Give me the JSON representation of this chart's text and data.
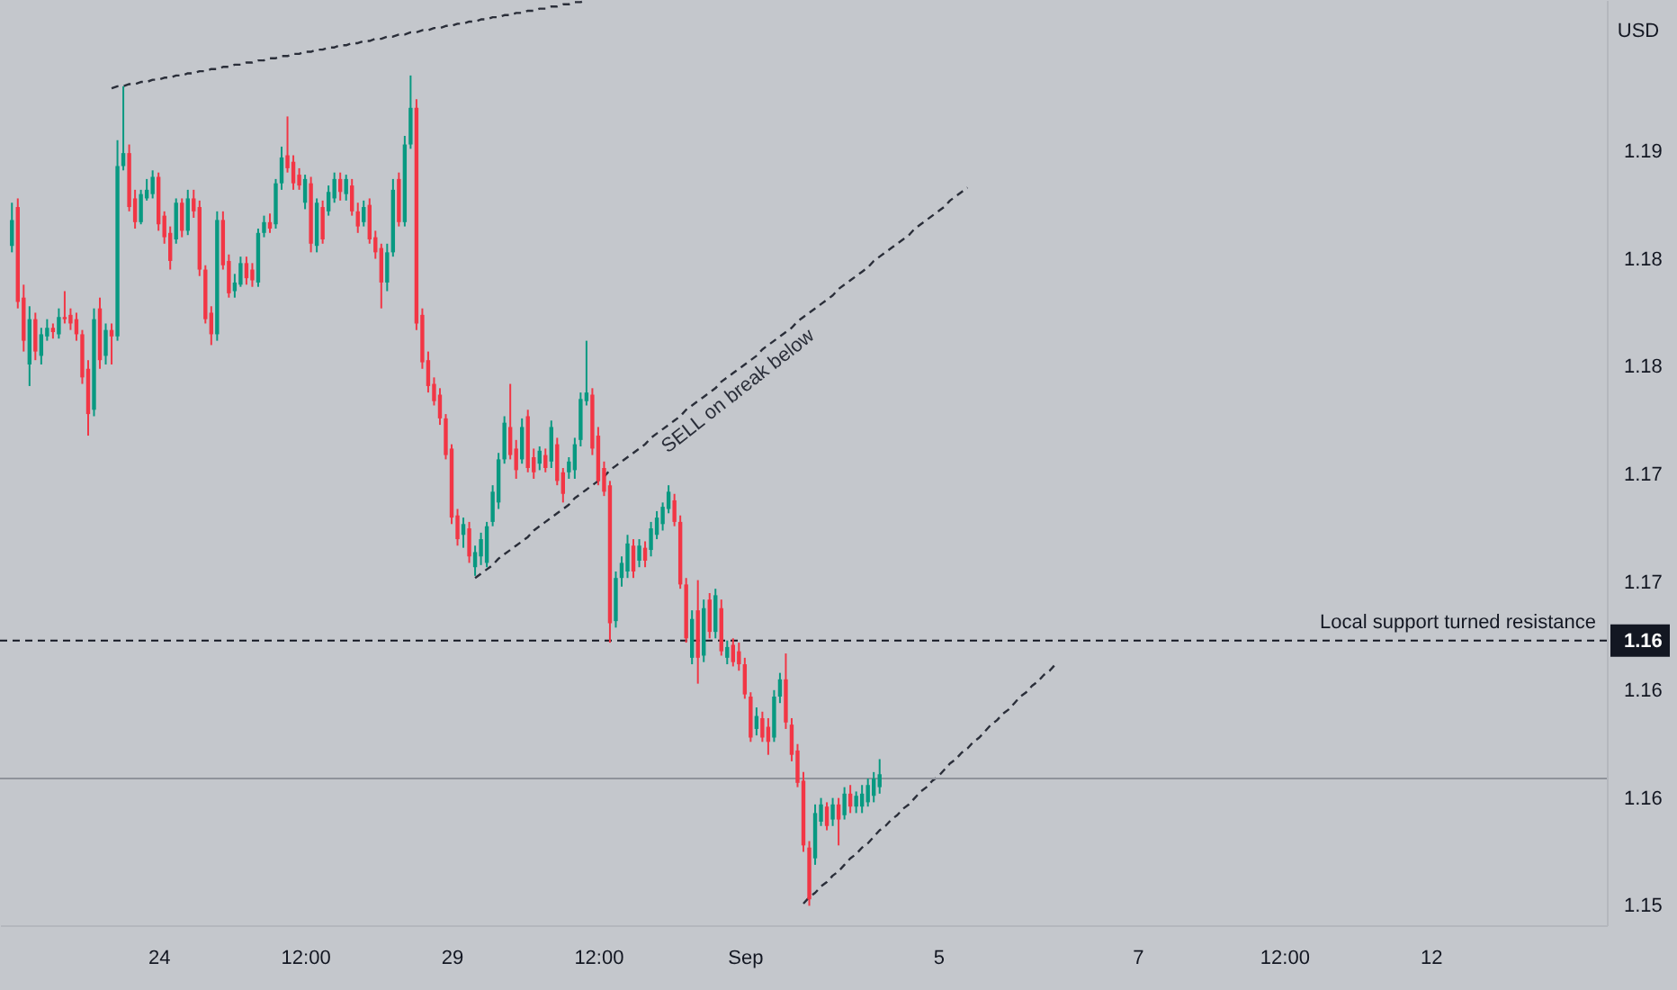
{
  "chart_data": {
    "type": "candlestick",
    "ylabel": "USD",
    "ylim": [
      1.1491,
      1.192
    ],
    "yticks": [
      {
        "value": 1.185,
        "label": "1.19"
      },
      1.18,
      {
        "value": 1.175,
        "label": "1.18"
      },
      1.17,
      {
        "value": 1.165,
        "label": "1.17"
      },
      {
        "value": 1.1623,
        "label": "1.16"
      },
      1.16,
      {
        "value": 1.155,
        "label": "1.16"
      },
      1.15
    ],
    "categories": [
      null,
      null,
      null,
      null,
      null,
      null,
      null,
      null,
      null,
      null,
      null,
      null,
      null,
      null,
      null,
      null,
      null,
      null,
      null,
      null,
      null,
      null,
      null,
      null,
      null,
      "24",
      null,
      null,
      null,
      null,
      null,
      null,
      null,
      null,
      null,
      null,
      null,
      null,
      null,
      null,
      null,
      null,
      null,
      null,
      null,
      null,
      null,
      null,
      null,
      null,
      "12:00",
      null,
      null,
      null,
      null,
      null,
      null,
      null,
      null,
      null,
      null,
      null,
      null,
      null,
      null,
      null,
      null,
      null,
      null,
      null,
      null,
      null,
      null,
      null,
      null,
      "29",
      null,
      null,
      null,
      null,
      null,
      null,
      null,
      null,
      null,
      null,
      null,
      null,
      null,
      null,
      null,
      null,
      null,
      null,
      null,
      null,
      null,
      null,
      null,
      null,
      "12:00",
      null,
      null,
      null,
      null,
      null,
      null,
      null,
      null,
      null,
      null,
      null,
      null,
      null,
      null,
      null,
      null,
      null,
      null,
      null,
      null,
      null,
      null,
      null,
      null,
      "Sep",
      null,
      null,
      null,
      null,
      null,
      null,
      null,
      null,
      null,
      null,
      null,
      null,
      null,
      null,
      null,
      null,
      null,
      null,
      null,
      null,
      null,
      null,
      null,
      null,
      null,
      null,
      null,
      null,
      null,
      null,
      null,
      null,
      "5",
      null,
      null,
      null,
      null,
      null,
      null,
      null,
      null,
      null,
      null,
      null,
      null,
      null,
      null,
      null,
      null,
      null,
      null,
      null,
      null,
      null,
      null,
      null,
      null,
      null,
      null,
      null,
      null,
      null,
      null,
      null,
      null,
      null,
      "7",
      null,
      null,
      null,
      null,
      null,
      null,
      null,
      null,
      null,
      null,
      null,
      null,
      null,
      null,
      null,
      null,
      null,
      null,
      null,
      null,
      null,
      null,
      null,
      null,
      "12:00",
      null,
      null,
      null,
      null,
      null,
      null,
      null,
      null,
      null,
      null,
      null,
      null,
      null,
      null,
      null,
      null,
      null,
      null,
      null,
      null,
      null,
      null,
      null,
      null,
      "12",
      null,
      null,
      null,
      null,
      null,
      null,
      null,
      null,
      null,
      null,
      null,
      null,
      null,
      null,
      null,
      null,
      null,
      null,
      null,
      null,
      null,
      null,
      null,
      null,
      null,
      null,
      null,
      null
    ],
    "ohlc": [
      [
        1.1806,
        1.1826,
        1.1803,
        1.1818
      ],
      [
        1.1824,
        1.1828,
        1.1777,
        1.178
      ],
      [
        1.1782,
        1.1788,
        1.1757,
        1.1762
      ],
      [
        1.1751,
        1.1778,
        1.1741,
        1.1772
      ],
      [
        1.1772,
        1.1775,
        1.1753,
        1.1757
      ],
      [
        1.1755,
        1.1768,
        1.1751,
        1.1765
      ],
      [
        1.1764,
        1.1772,
        1.1762,
        1.1768
      ],
      [
        1.1768,
        1.177,
        1.1763,
        1.1766
      ],
      [
        1.1765,
        1.1777,
        1.1763,
        1.1773
      ],
      [
        1.1773,
        1.1785,
        1.177,
        1.1772
      ],
      [
        1.1774,
        1.1777,
        1.1767,
        1.177
      ],
      [
        1.1772,
        1.1775,
        1.1762,
        1.1765
      ],
      [
        1.1765,
        1.1767,
        1.1742,
        1.1745
      ],
      [
        1.1749,
        1.1753,
        1.1718,
        1.1728
      ],
      [
        1.173,
        1.1777,
        1.1727,
        1.1772
      ],
      [
        1.1777,
        1.1782,
        1.1749,
        1.1753
      ],
      [
        1.1755,
        1.177,
        1.1751,
        1.1767
      ],
      [
        1.1767,
        1.177,
        1.1751,
        1.1764
      ],
      [
        1.1764,
        1.1855,
        1.1762,
        1.1843
      ],
      [
        1.1843,
        1.188,
        1.1841,
        1.1849
      ],
      [
        1.1849,
        1.1853,
        1.1822,
        1.1824
      ],
      [
        1.1828,
        1.1832,
        1.1814,
        1.1817
      ],
      [
        1.1817,
        1.1832,
        1.1816,
        1.183
      ],
      [
        1.1828,
        1.1837,
        1.1827,
        1.1832
      ],
      [
        1.183,
        1.1841,
        1.1828,
        1.1838
      ],
      [
        1.1838,
        1.184,
        1.1813,
        1.1816
      ],
      [
        1.182,
        1.1822,
        1.1807,
        1.181
      ],
      [
        1.1812,
        1.1815,
        1.1795,
        1.1799
      ],
      [
        1.1809,
        1.1828,
        1.1807,
        1.1826
      ],
      [
        1.1826,
        1.1828,
        1.181,
        1.1813
      ],
      [
        1.1813,
        1.1832,
        1.1811,
        1.1828
      ],
      [
        1.1828,
        1.1832,
        1.1819,
        1.1822
      ],
      [
        1.1824,
        1.1827,
        1.1792,
        1.1795
      ],
      [
        1.1795,
        1.1797,
        1.177,
        1.1772
      ],
      [
        1.1775,
        1.1778,
        1.176,
        1.1765
      ],
      [
        1.1765,
        1.1822,
        1.1762,
        1.1818
      ],
      [
        1.1818,
        1.1822,
        1.1795,
        1.1797
      ],
      [
        1.1799,
        1.1802,
        1.1782,
        1.1784
      ],
      [
        1.1785,
        1.1793,
        1.1782,
        1.1789
      ],
      [
        1.1788,
        1.1801,
        1.1787,
        1.1798
      ],
      [
        1.1798,
        1.1801,
        1.1788,
        1.1791
      ],
      [
        1.1795,
        1.1798,
        1.1787,
        1.179
      ],
      [
        1.1789,
        1.1814,
        1.1787,
        1.1812
      ],
      [
        1.1812,
        1.182,
        1.181,
        1.1817
      ],
      [
        1.1817,
        1.1821,
        1.1812,
        1.1814
      ],
      [
        1.1816,
        1.1837,
        1.1814,
        1.1835
      ],
      [
        1.1835,
        1.1852,
        1.1832,
        1.1847
      ],
      [
        1.1848,
        1.1866,
        1.184,
        1.1842
      ],
      [
        1.1845,
        1.1848,
        1.1832,
        1.1835
      ],
      [
        1.1839,
        1.1842,
        1.1832,
        1.1834
      ],
      [
        1.1826,
        1.1839,
        1.1823,
        1.1837
      ],
      [
        1.1835,
        1.1838,
        1.1803,
        1.1807
      ],
      [
        1.1806,
        1.1828,
        1.1803,
        1.1826
      ],
      [
        1.1824,
        1.1827,
        1.1807,
        1.1809
      ],
      [
        1.1822,
        1.1834,
        1.182,
        1.1831
      ],
      [
        1.1828,
        1.184,
        1.1826,
        1.1837
      ],
      [
        1.1837,
        1.184,
        1.1827,
        1.1831
      ],
      [
        1.183,
        1.1839,
        1.1827,
        1.1837
      ],
      [
        1.1834,
        1.1837,
        1.182,
        1.1822
      ],
      [
        1.1822,
        1.1826,
        1.1812,
        1.1815
      ],
      [
        1.1817,
        1.1827,
        1.1815,
        1.1824
      ],
      [
        1.1825,
        1.1828,
        1.1807,
        1.1809
      ],
      [
        1.181,
        1.1813,
        1.18,
        1.1803
      ],
      [
        1.1805,
        1.1807,
        1.1777,
        1.1789
      ],
      [
        1.1789,
        1.1807,
        1.1785,
        1.1803
      ],
      [
        1.1803,
        1.1837,
        1.1801,
        1.1832
      ],
      [
        1.1837,
        1.184,
        1.1815,
        1.1817
      ],
      [
        1.1817,
        1.1857,
        1.1815,
        1.1853
      ],
      [
        1.1853,
        1.1885,
        1.1851,
        1.187
      ],
      [
        1.187,
        1.1874,
        1.1767,
        1.177
      ],
      [
        1.1774,
        1.1777,
        1.1749,
        1.1752
      ],
      [
        1.1753,
        1.1757,
        1.1738,
        1.1741
      ],
      [
        1.1742,
        1.1745,
        1.1732,
        1.1734
      ],
      [
        1.1737,
        1.174,
        1.1723,
        1.1726
      ],
      [
        1.1726,
        1.1728,
        1.1707,
        1.1709
      ],
      [
        1.1712,
        1.1714,
        1.1677,
        1.168
      ],
      [
        1.1681,
        1.1684,
        1.1667,
        1.167
      ],
      [
        1.1672,
        1.168,
        1.1666,
        1.1677
      ],
      [
        1.1675,
        1.1678,
        1.1659,
        1.1662
      ],
      [
        1.1657,
        1.1667,
        1.1653,
        1.1664
      ],
      [
        1.1662,
        1.1673,
        1.1658,
        1.167
      ],
      [
        1.1659,
        1.1678,
        1.1657,
        1.1676
      ],
      [
        1.1678,
        1.1695,
        1.1676,
        1.1692
      ],
      [
        1.1687,
        1.171,
        1.1684,
        1.1707
      ],
      [
        1.1707,
        1.1727,
        1.1705,
        1.1724
      ],
      [
        1.1722,
        1.1742,
        1.1707,
        1.1709
      ],
      [
        1.1712,
        1.1716,
        1.1698,
        1.1702
      ],
      [
        1.1707,
        1.1726,
        1.1705,
        1.1722
      ],
      [
        1.1727,
        1.173,
        1.1701,
        1.1703
      ],
      [
        1.1708,
        1.1712,
        1.1698,
        1.1701
      ],
      [
        1.1705,
        1.1713,
        1.1702,
        1.1711
      ],
      [
        1.1709,
        1.1712,
        1.1701,
        1.1703
      ],
      [
        1.1706,
        1.1725,
        1.1703,
        1.1722
      ],
      [
        1.1714,
        1.1717,
        1.1695,
        1.1697
      ],
      [
        1.1701,
        1.1703,
        1.1687,
        1.1691
      ],
      [
        1.1701,
        1.1708,
        1.1698,
        1.1706
      ],
      [
        1.1702,
        1.1717,
        1.1698,
        1.1714
      ],
      [
        1.1716,
        1.1738,
        1.1713,
        1.1735
      ],
      [
        1.1734,
        1.1762,
        1.1732,
        1.1738
      ],
      [
        1.1737,
        1.174,
        1.1709,
        1.1712
      ],
      [
        1.1718,
        1.1722,
        1.1695,
        1.1697
      ],
      [
        1.1703,
        1.1706,
        1.169,
        1.1692
      ],
      [
        1.1695,
        1.1697,
        1.1622,
        1.1631
      ],
      [
        1.1632,
        1.1655,
        1.1629,
        1.1652
      ],
      [
        1.1652,
        1.1662,
        1.1648,
        1.1659
      ],
      [
        1.1655,
        1.1672,
        1.1652,
        1.1668
      ],
      [
        1.1667,
        1.167,
        1.1652,
        1.1655
      ],
      [
        1.166,
        1.167,
        1.1657,
        1.1667
      ],
      [
        1.1666,
        1.1669,
        1.1657,
        1.166
      ],
      [
        1.1665,
        1.1678,
        1.1662,
        1.1675
      ],
      [
        1.1672,
        1.1683,
        1.167,
        1.168
      ],
      [
        1.1677,
        1.1687,
        1.1674,
        1.1685
      ],
      [
        1.1684,
        1.1695,
        1.1682,
        1.1692
      ],
      [
        1.1688,
        1.1691,
        1.1676,
        1.1678
      ],
      [
        1.1678,
        1.1681,
        1.1647,
        1.1649
      ],
      [
        1.1649,
        1.1652,
        1.1622,
        1.1624
      ],
      [
        1.1615,
        1.1637,
        1.1612,
        1.1633
      ],
      [
        1.1637,
        1.1651,
        1.1603,
        1.1615
      ],
      [
        1.1616,
        1.1642,
        1.1613,
        1.1638
      ],
      [
        1.1642,
        1.1645,
        1.1624,
        1.1627
      ],
      [
        1.1627,
        1.1647,
        1.1624,
        1.1644
      ],
      [
        1.1638,
        1.1642,
        1.1616,
        1.1618
      ],
      [
        1.1615,
        1.1623,
        1.1612,
        1.162
      ],
      [
        1.1621,
        1.1624,
        1.1611,
        1.1613
      ],
      [
        1.1618,
        1.1622,
        1.1609,
        1.1612
      ],
      [
        1.1612,
        1.1615,
        1.1596,
        1.1598
      ],
      [
        1.1597,
        1.1599,
        1.1576,
        1.1578
      ],
      [
        1.1582,
        1.1592,
        1.1579,
        1.1588
      ],
      [
        1.1587,
        1.159,
        1.1576,
        1.1578
      ],
      [
        1.1583,
        1.1587,
        1.157,
        1.1576
      ],
      [
        1.1578,
        1.16,
        1.1576,
        1.1597
      ],
      [
        1.1597,
        1.1608,
        1.1594,
        1.1605
      ],
      [
        1.1605,
        1.1617,
        1.1582,
        1.1585
      ],
      [
        1.1584,
        1.1587,
        1.1567,
        1.157
      ],
      [
        1.1572,
        1.1575,
        1.1555,
        1.1557
      ],
      [
        1.1558,
        1.1562,
        1.1525,
        1.1528
      ],
      [
        1.1527,
        1.153,
        1.15,
        1.1503
      ],
      [
        1.1522,
        1.1547,
        1.1519,
        1.1543
      ],
      [
        1.1539,
        1.155,
        1.1537,
        1.1547
      ],
      [
        1.1546,
        1.1548,
        1.1535,
        1.1537
      ],
      [
        1.154,
        1.155,
        1.1537,
        1.1547
      ],
      [
        1.1547,
        1.155,
        1.1528,
        1.154
      ],
      [
        1.1542,
        1.1555,
        1.154,
        1.1552
      ],
      [
        1.1552,
        1.1556,
        1.1543,
        1.1546
      ],
      [
        1.1546,
        1.1553,
        1.1543,
        1.1551
      ],
      [
        1.1546,
        1.1556,
        1.1543,
        1.1552
      ],
      [
        1.1548,
        1.1559,
        1.1546,
        1.1556
      ],
      [
        1.1551,
        1.1562,
        1.1548,
        1.1559
      ],
      [
        1.1555,
        1.1568,
        1.1552,
        1.1561
      ],
      null,
      null,
      null,
      null,
      null,
      null,
      null,
      null,
      null,
      null,
      null,
      null,
      null,
      null,
      null,
      null,
      null,
      null,
      null,
      null,
      null,
      null,
      null,
      null,
      null,
      null,
      null,
      null,
      null,
      null,
      null,
      null,
      null,
      null,
      null,
      null,
      null,
      null,
      null,
      null,
      null,
      null,
      null,
      null,
      null,
      null,
      null,
      null,
      null,
      null,
      null,
      null,
      null,
      null,
      null,
      null,
      null,
      null,
      null,
      null,
      null,
      null,
      null,
      null,
      null,
      null,
      null,
      null,
      null,
      null,
      null,
      null,
      null,
      null,
      null,
      null,
      null,
      null,
      null,
      null,
      null,
      null,
      null,
      null,
      null,
      null,
      null,
      null,
      null,
      null,
      null,
      null,
      null,
      null,
      null,
      null,
      null,
      null,
      null,
      null,
      null,
      null,
      null,
      null,
      null,
      null,
      null,
      null,
      null,
      null,
      null,
      null,
      null,
      null,
      null,
      null,
      null,
      null,
      null,
      null,
      null,
      null
    ],
    "colors": [
      "#089981",
      "#f23645",
      "#f23645",
      "#089981",
      "#f23645",
      "#089981",
      "#089981",
      "#f23645",
      "#089981",
      "#f23645",
      "#f23645",
      "#f23645",
      "#f23645",
      "#f23645",
      "#089981",
      "#f23645",
      "#089981",
      "#f23645",
      "#089981",
      "#089981",
      "#f23645",
      "#f23645",
      "#089981",
      "#089981",
      "#089981",
      "#f23645",
      "#f23645",
      "#f23645",
      "#089981",
      "#f23645",
      "#089981",
      "#f23645",
      "#f23645",
      "#f23645",
      "#f23645",
      "#089981",
      "#f23645",
      "#f23645",
      "#089981",
      "#089981",
      "#f23645",
      "#f23645",
      "#089981",
      "#089981",
      "#f23645",
      "#089981",
      "#089981",
      "#f23645",
      "#f23645",
      "#f23645",
      "#089981",
      "#f23645",
      "#089981",
      "#f23645",
      "#089981",
      "#089981",
      "#f23645",
      "#089981",
      "#f23645",
      "#f23645",
      "#089981",
      "#f23645",
      "#f23645",
      "#f23645",
      "#089981",
      "#089981",
      "#f23645",
      "#089981",
      "#089981",
      "#f23645",
      "#f23645",
      "#f23645",
      "#f23645",
      "#f23645",
      "#f23645",
      "#f23645",
      "#f23645",
      "#089981",
      "#f23645",
      "#089981",
      "#089981",
      "#089981",
      "#089981",
      "#089981",
      "#089981",
      "#f23645",
      "#f23645",
      "#089981",
      "#f23645",
      "#f23645",
      "#089981",
      "#f23645",
      "#089981",
      "#f23645",
      "#f23645",
      "#089981",
      "#089981",
      "#089981",
      "#089981",
      "#f23645",
      "#f23645",
      "#f23645",
      "#f23645",
      "#089981",
      "#089981",
      "#089981",
      "#f23645",
      "#089981",
      "#f23645",
      "#089981",
      "#089981",
      "#089981",
      "#089981",
      "#f23645",
      "#f23645",
      "#f23645",
      "#089981",
      "#f23645",
      "#089981",
      "#f23645",
      "#089981",
      "#f23645",
      "#089981",
      "#f23645",
      "#f23645",
      "#f23645",
      "#f23645",
      "#089981",
      "#f23645",
      "#f23645",
      "#089981",
      "#089981",
      "#f23645",
      "#f23645",
      "#f23645",
      "#f23645",
      "#f23645",
      "#089981",
      "#089981",
      "#f23645",
      "#089981",
      "#f23645",
      "#089981",
      "#f23645",
      "#089981",
      "#089981",
      "#089981",
      "#089981",
      "#089981",
      null,
      null,
      null,
      null,
      null,
      null,
      null,
      null,
      null,
      null,
      null,
      null,
      null,
      null,
      null,
      null,
      null,
      null,
      null,
      null,
      null,
      null,
      null,
      null,
      null,
      null,
      null,
      null,
      null,
      null,
      null,
      null,
      null,
      null,
      null,
      null,
      null,
      null,
      null,
      null,
      null,
      null,
      null,
      null,
      null,
      null,
      null,
      null,
      null,
      null,
      null,
      null,
      null,
      null,
      null,
      null,
      null,
      null,
      null,
      null,
      null,
      null,
      null,
      null,
      null,
      null,
      null,
      null,
      null,
      null,
      null,
      null,
      null,
      null,
      null,
      null,
      null,
      null,
      null,
      null,
      null,
      null,
      null,
      null,
      null,
      null,
      null,
      null,
      null,
      null,
      null,
      null,
      null,
      null,
      null,
      null,
      null,
      null,
      null,
      null,
      null,
      null,
      null,
      null,
      null,
      null,
      null,
      null,
      null,
      null,
      null,
      null,
      null,
      null,
      null,
      null,
      null,
      null,
      null,
      null,
      null,
      null
    ],
    "series": [
      {
        "type": "line",
        "color": "#2a2e39",
        "line_style": "dashed",
        "values": [
          null,
          null,
          null,
          null,
          null,
          null,
          null,
          null,
          null,
          null,
          null,
          null,
          null,
          null,
          null,
          null,
          null,
          1.1879,
          1.188,
          1.188,
          1.1881,
          1.1881,
          1.1882,
          1.1882,
          1.1883,
          1.1883,
          1.1884,
          1.1884,
          1.1885,
          1.1885,
          1.1886,
          1.1886,
          1.1887,
          1.1887,
          1.1888,
          1.1888,
          1.1889,
          1.1889,
          1.189,
          1.189,
          1.1891,
          1.1891,
          1.1892,
          1.1892,
          1.1893,
          1.1893,
          1.1894,
          1.1894,
          1.1895,
          1.1895,
          1.1896,
          1.1896,
          1.1897,
          1.1897,
          1.1898,
          1.1898,
          1.1899,
          1.1899,
          1.19,
          1.19,
          1.1901,
          1.1901,
          1.1902,
          1.1902,
          1.1903,
          1.1903,
          1.1904,
          1.1904,
          1.1905,
          1.1905,
          1.1906,
          1.1906,
          1.1907,
          1.1907,
          1.1908,
          1.1908,
          1.1909,
          1.1909,
          1.191,
          1.191,
          1.1911,
          1.1911,
          1.1912,
          1.1912,
          1.1913,
          1.1913,
          1.1914,
          1.1914,
          1.1915,
          1.1915,
          1.1916,
          1.1916,
          1.1917,
          1.1917,
          1.1918,
          1.1918,
          1.1919,
          1.1919,
          1.192,
          null,
          null,
          null,
          null,
          null,
          null,
          null,
          null,
          null,
          null,
          null,
          null,
          null,
          null,
          null,
          null,
          null,
          null,
          null,
          null,
          null,
          null,
          null,
          null,
          null,
          null,
          null,
          null,
          null,
          null,
          null,
          null,
          null,
          null,
          null,
          null,
          null,
          null,
          null,
          null,
          null,
          null,
          null,
          null,
          null,
          null,
          null,
          null,
          null,
          null,
          null,
          null,
          null,
          null,
          null,
          null,
          null,
          null,
          null,
          null,
          null,
          null,
          null,
          null,
          null,
          null,
          null,
          null,
          null,
          null,
          null,
          null,
          null,
          null,
          null,
          null,
          null,
          null,
          null,
          null,
          null,
          null,
          null,
          null,
          null,
          null,
          null,
          null,
          null,
          null,
          null,
          null,
          null,
          null,
          null,
          null,
          null,
          null,
          null,
          null,
          null,
          null,
          null,
          null,
          null,
          null,
          null,
          null,
          null,
          null,
          null,
          null,
          null,
          null,
          null,
          null,
          null,
          null,
          null,
          null,
          null,
          null,
          null,
          null,
          null,
          null,
          null,
          null,
          null,
          null,
          null,
          null,
          null,
          null,
          null,
          null,
          null,
          null,
          null,
          null,
          null,
          null,
          null,
          null,
          null,
          null,
          null,
          null,
          null,
          null,
          null,
          null,
          null,
          null,
          null,
          null,
          null,
          null,
          null,
          null,
          null,
          null,
          null,
          null,
          null,
          null,
          null,
          null,
          null,
          null,
          null,
          null
        ]
      },
      {
        "type": "line",
        "color": "#2a2e39",
        "line_style": "dashed",
        "values": [
          null,
          null,
          null,
          null,
          null,
          null,
          null,
          null,
          null,
          null,
          null,
          null,
          null,
          null,
          null,
          null,
          null,
          null,
          null,
          null,
          null,
          null,
          null,
          null,
          null,
          null,
          null,
          null,
          null,
          null,
          null,
          null,
          null,
          null,
          null,
          null,
          null,
          null,
          null,
          null,
          null,
          null,
          null,
          null,
          null,
          null,
          null,
          null,
          null,
          null,
          null,
          null,
          null,
          null,
          null,
          null,
          null,
          null,
          null,
          null,
          null,
          null,
          null,
          null,
          null,
          null,
          null,
          null,
          null,
          null,
          null,
          null,
          null,
          null,
          null,
          null,
          null,
          null,
          null,
          1.1652,
          1.1654,
          1.1656,
          1.1658,
          1.1661,
          1.1663,
          1.1665,
          1.1667,
          1.1669,
          1.1671,
          1.1674,
          1.1676,
          1.1678,
          1.168,
          1.1682,
          1.1684,
          1.1686,
          1.1689,
          1.1691,
          1.1693,
          1.1695,
          1.1697,
          1.1699,
          1.1702,
          1.1704,
          1.1706,
          1.1708,
          1.171,
          1.1712,
          1.1714,
          1.1717,
          1.1719,
          1.1721,
          1.1723,
          1.1725,
          1.1727,
          1.173,
          1.1732,
          1.1734,
          1.1736,
          1.1738,
          1.174,
          1.1743,
          1.1745,
          1.1747,
          1.1749,
          1.1751,
          1.1753,
          1.1755,
          1.1758,
          1.176,
          1.1762,
          1.1764,
          1.1766,
          1.1768,
          1.1771,
          1.1773,
          1.1775,
          1.1777,
          1.1779,
          1.1781,
          1.1783,
          1.1786,
          1.1788,
          1.179,
          1.1792,
          1.1794,
          1.1796,
          1.1799,
          1.1801,
          1.1803,
          1.1805,
          1.1807,
          1.1809,
          1.1811,
          1.1814,
          1.1816,
          1.1818,
          1.182,
          1.1822,
          1.1824,
          1.1827,
          1.1829,
          1.1831,
          1.1833,
          null,
          null,
          null,
          null,
          null,
          null,
          null,
          null,
          null,
          null,
          null,
          null,
          null,
          null,
          null,
          null,
          null,
          null,
          null,
          null,
          null,
          null,
          null,
          null,
          null,
          null,
          null,
          null,
          null,
          null,
          null,
          null,
          null,
          null,
          null,
          null,
          null,
          null,
          null,
          null,
          null,
          null,
          null,
          null,
          null,
          null,
          null,
          null,
          null,
          null,
          null,
          null,
          null,
          null,
          null,
          null,
          null,
          null,
          null,
          null,
          null,
          null,
          null,
          null,
          null,
          null,
          null,
          null,
          null,
          null,
          null,
          null,
          null,
          null,
          null,
          null,
          null,
          null,
          null,
          null,
          null,
          null,
          null,
          null,
          null,
          null,
          null,
          null,
          null,
          null,
          null,
          null,
          null,
          null,
          null,
          null,
          null,
          null,
          null,
          null,
          null,
          null,
          null,
          null,
          null,
          null,
          null
        ]
      },
      {
        "type": "line",
        "color": "#2a2e39",
        "line_style": "dashed",
        "values": [
          null,
          null,
          null,
          null,
          null,
          null,
          null,
          null,
          null,
          null,
          null,
          null,
          null,
          null,
          null,
          null,
          null,
          null,
          null,
          null,
          null,
          null,
          null,
          null,
          null,
          null,
          null,
          null,
          null,
          null,
          null,
          null,
          null,
          null,
          null,
          null,
          null,
          null,
          null,
          null,
          null,
          null,
          null,
          null,
          null,
          null,
          null,
          null,
          null,
          null,
          null,
          null,
          null,
          null,
          null,
          null,
          null,
          null,
          null,
          null,
          null,
          null,
          null,
          null,
          null,
          null,
          null,
          null,
          null,
          null,
          null,
          null,
          null,
          null,
          null,
          null,
          null,
          null,
          null,
          null,
          null,
          null,
          null,
          null,
          null,
          null,
          null,
          null,
          null,
          null,
          null,
          null,
          null,
          null,
          null,
          null,
          null,
          null,
          null,
          null,
          null,
          null,
          null,
          null,
          null,
          null,
          null,
          null,
          null,
          null,
          null,
          null,
          null,
          null,
          null,
          null,
          null,
          null,
          null,
          null,
          null,
          null,
          null,
          null,
          null,
          null,
          null,
          null,
          null,
          null,
          null,
          null,
          null,
          null,
          null,
          1.1501,
          1.1504,
          1.1506,
          1.1509,
          1.1511,
          1.1514,
          1.1516,
          1.1519,
          1.1522,
          1.1524,
          1.1527,
          1.1529,
          1.1532,
          1.1535,
          1.1537,
          1.154,
          1.1542,
          1.1545,
          1.1547,
          1.155,
          1.1553,
          1.1555,
          1.1558,
          1.156,
          1.1563,
          1.1566,
          1.1568,
          1.1571,
          1.1573,
          1.1576,
          1.1578,
          1.1581,
          1.1584,
          1.1586,
          1.1589,
          1.1591,
          1.1594,
          1.1597,
          1.1599,
          1.1602,
          1.1604,
          1.1607,
          1.1609,
          1.1612,
          null,
          null,
          null,
          null,
          null,
          null,
          null,
          null,
          null,
          null,
          null,
          null,
          null,
          null,
          null,
          null,
          null,
          null,
          null,
          null,
          null,
          null,
          null,
          null,
          null,
          null,
          null,
          null,
          null,
          null,
          null,
          null,
          null,
          null,
          null,
          null,
          null,
          null,
          null,
          null,
          null,
          null,
          null,
          null,
          null,
          null,
          null,
          null,
          null,
          null,
          null,
          null,
          null,
          null,
          null,
          null,
          null,
          null,
          null,
          null,
          null,
          null,
          null,
          null,
          null,
          null,
          null,
          null,
          null,
          null,
          null,
          null,
          null,
          null,
          null,
          null,
          null,
          null,
          null,
          null,
          null,
          null,
          null,
          null,
          null,
          null,
          null,
          null,
          null,
          null,
          null,
          null
        ]
      }
    ],
    "ref_lines": [
      {
        "axis": "y",
        "value": 1.1623,
        "label": "Local support turned resistance",
        "color": "#131722",
        "line_style": "dashed"
      },
      {
        "axis": "y",
        "value": 1.1559,
        "color": "#8f939b",
        "line_style": "solid"
      }
    ],
    "annotations": [
      {
        "text": "SELL on break below",
        "y": 1.1745
      }
    ]
  }
}
